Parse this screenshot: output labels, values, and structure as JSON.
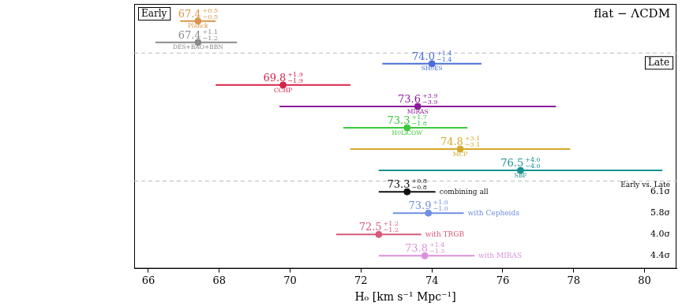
{
  "chart_data": {
    "type": "errorbar",
    "title": "flat − ΛCDM",
    "x_label": "H₀ [km s⁻¹ Mpc⁻¹]",
    "xlim": [
      65.6,
      80.9
    ],
    "xticks": [
      66,
      68,
      70,
      72,
      74,
      76,
      78,
      80
    ],
    "grid": false,
    "tick_labels": "x",
    "groups": [
      {
        "label": "Early",
        "rows": [
          {
            "name": "Planck",
            "value": 67.4,
            "value_label": "67.4",
            "plus": 0.5,
            "plus_label": "+0.5",
            "minus": 0.5,
            "minus_label": "−0.5",
            "color": "#d9954a"
          },
          {
            "name": "DES+BAO+BBN",
            "value": 67.4,
            "value_label": "67.4",
            "plus": 1.1,
            "plus_label": "+1.1",
            "minus": 1.2,
            "minus_label": "−1.2",
            "color": "#8a8a8a"
          }
        ]
      },
      {
        "label": "Late",
        "rows": [
          {
            "name": "SH0ES",
            "value": 74.0,
            "value_label": "74.0",
            "plus": 1.4,
            "plus_label": "+1.4",
            "minus": 1.4,
            "minus_label": "−1.4",
            "color": "#4a6fd6"
          },
          {
            "name": "CCHP",
            "value": 69.8,
            "value_label": "69.8",
            "plus": 1.9,
            "plus_label": "+1.9",
            "minus": 1.9,
            "minus_label": "−1.9",
            "color": "#d6234a"
          },
          {
            "name": "MIRAS",
            "value": 73.6,
            "value_label": "73.6",
            "plus": 3.9,
            "plus_label": "+3.9",
            "minus": 3.9,
            "minus_label": "−3.9",
            "color": "#8b1a9b"
          },
          {
            "name": "H0LiCOW",
            "value": 73.3,
            "value_label": "73.3",
            "plus": 1.7,
            "plus_label": "+1.7",
            "minus": 1.8,
            "minus_label": "−1.8",
            "color": "#3cc83c"
          },
          {
            "name": "MCP",
            "value": 74.8,
            "value_label": "74.8",
            "plus": 3.1,
            "plus_label": "+3.1",
            "minus": 3.1,
            "minus_label": "−3.1",
            "color": "#d4a82a"
          },
          {
            "name": "SBF",
            "value": 76.5,
            "value_label": "76.5",
            "plus": 4.0,
            "plus_label": "+4.0",
            "minus": 4.0,
            "minus_label": "−4.0",
            "color": "#1a9090"
          }
        ]
      },
      {
        "header": "Early vs. Late",
        "rows": [
          {
            "name": "combining all",
            "value": 73.3,
            "value_label": "73.3",
            "plus": 0.8,
            "plus_label": "+0.8",
            "minus": 0.8,
            "minus_label": "−0.8",
            "color": "#111111",
            "sigma": 6.1,
            "sigma_label": "6.1σ"
          },
          {
            "name": "with Cepheids",
            "value": 73.9,
            "value_label": "73.9",
            "plus": 1.0,
            "plus_label": "+1.0",
            "minus": 1.0,
            "minus_label": "−1.0",
            "color": "#6f8fe0",
            "sigma": 5.8,
            "sigma_label": "5.8σ"
          },
          {
            "name": "with TRGB",
            "value": 72.5,
            "value_label": "72.5",
            "plus": 1.2,
            "plus_label": "+1.2",
            "minus": 1.2,
            "minus_label": "−1.2",
            "color": "#d65a7a",
            "sigma": 4.0,
            "sigma_label": "4.0σ"
          },
          {
            "name": "with MIRAS",
            "value": 73.8,
            "value_label": "73.8",
            "plus": 1.4,
            "plus_label": "+1.4",
            "minus": 1.3,
            "minus_label": "−1.3",
            "color": "#dd90dd",
            "sigma": 4.4,
            "sigma_label": "4.4σ"
          }
        ]
      }
    ]
  }
}
